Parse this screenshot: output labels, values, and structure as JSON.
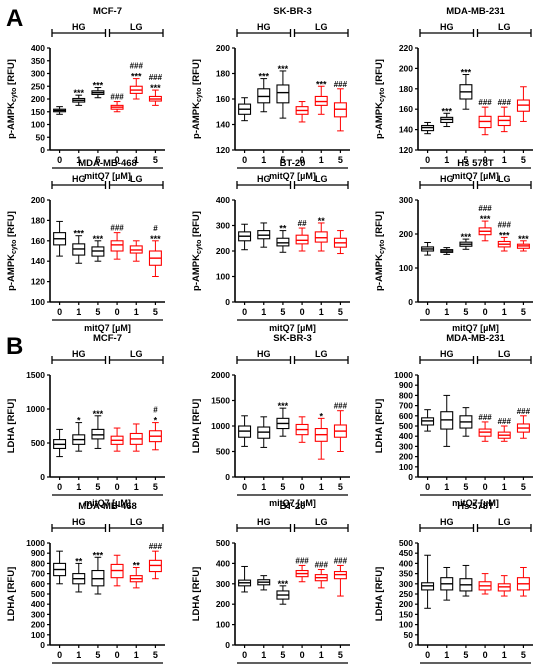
{
  "sections": [
    {
      "label": "A"
    },
    {
      "label": "B"
    }
  ],
  "colors": {
    "hg": "#000000",
    "lg": "#ff0000",
    "axis": "#000000"
  },
  "groups": [
    "HG",
    "LG"
  ],
  "categories": [
    "0",
    "1",
    "5",
    "0",
    "1",
    "5"
  ],
  "xlabel": "mitQ7 [µM]",
  "chart_data": [
    {
      "type": "box",
      "section": "A",
      "title": "MCF-7",
      "ylabel_main": "p-AMPK",
      "ylabel_sub": "cyto",
      "ylabel_unit": " [RFU]",
      "ylim": [
        0,
        400
      ],
      "yticks": [
        "0",
        "50",
        "100",
        "150",
        "200",
        "250",
        "300",
        "350",
        "400"
      ],
      "series": [
        {
          "name": "HG",
          "boxes": [
            [
              140,
              150,
              155,
              160,
              170
            ],
            [
              175,
              188,
              195,
              202,
              215
            ],
            [
              205,
              218,
              225,
              232,
              245
            ]
          ]
        },
        {
          "name": "LG",
          "boxes": [
            [
              150,
              160,
              168,
              175,
              190
            ],
            [
              200,
              222,
              235,
              250,
              280
            ],
            [
              175,
              192,
              200,
              210,
              235
            ]
          ]
        }
      ],
      "annotations": [
        [
          "",
          "***",
          "***"
        ],
        [
          "###",
          "###\n***",
          "###\n***"
        ]
      ]
    },
    {
      "type": "box",
      "section": "A",
      "title": "SK-BR-3",
      "ylabel_main": "p-AMPK",
      "ylabel_sub": "cyto",
      "ylabel_unit": " [RFU]",
      "ylim": [
        120,
        200
      ],
      "yticks": [
        "120",
        "140",
        "160",
        "180",
        "200"
      ],
      "series": [
        {
          "name": "HG",
          "boxes": [
            [
              143,
              148,
              152,
              156,
              161
            ],
            [
              150,
              157,
              162,
              168,
              176
            ],
            [
              145,
              157,
              165,
              171,
              182
            ]
          ]
        },
        {
          "name": "LG",
          "boxes": [
            [
              142,
              148,
              151,
              154,
              158
            ],
            [
              148,
              155,
              158,
              162,
              170
            ],
            [
              135,
              146,
              152,
              157,
              168
            ]
          ]
        }
      ],
      "annotations": [
        [
          "",
          "***",
          "***"
        ],
        [
          "",
          "***",
          "###"
        ]
      ]
    },
    {
      "type": "box",
      "section": "A",
      "title": "MDA-MB-231",
      "ylabel_main": "p-AMPK",
      "ylabel_sub": "cyto",
      "ylabel_unit": " [RFU]",
      "ylim": [
        120,
        220
      ],
      "yticks": [
        "120",
        "140",
        "160",
        "180",
        "200",
        "220"
      ],
      "series": [
        {
          "name": "HG",
          "boxes": [
            [
              136,
              139,
              142,
              144,
              147
            ],
            [
              143,
              147,
              150,
              152,
              156
            ],
            [
              160,
              170,
              177,
              184,
              194
            ]
          ]
        },
        {
          "name": "LG",
          "boxes": [
            [
              135,
              142,
              148,
              153,
              162
            ],
            [
              138,
              144,
              149,
              153,
              162
            ],
            [
              148,
              158,
              164,
              169,
              182
            ]
          ]
        }
      ],
      "annotations": [
        [
          "",
          "***",
          "***"
        ],
        [
          "###",
          "###",
          ""
        ]
      ]
    },
    {
      "type": "box",
      "section": "A",
      "title": "MDA-MB-468",
      "ylabel_main": "p-AMPK",
      "ylabel_sub": "cyto",
      "ylabel_unit": " [RFU]",
      "ylim": [
        100,
        200
      ],
      "yticks": [
        "100",
        "120",
        "140",
        "160",
        "180",
        "200"
      ],
      "series": [
        {
          "name": "HG",
          "boxes": [
            [
              145,
              156,
              162,
              168,
              179
            ],
            [
              138,
              146,
              152,
              157,
              165
            ],
            [
              140,
              145,
              150,
              154,
              160
            ]
          ]
        },
        {
          "name": "LG",
          "boxes": [
            [
              142,
              150,
              156,
              160,
              168
            ],
            [
              140,
              148,
              151,
              155,
              160
            ],
            [
              125,
              136,
              143,
              150,
              160
            ]
          ]
        }
      ],
      "annotations": [
        [
          "",
          "***",
          "***"
        ],
        [
          "###",
          "",
          "#\n***"
        ]
      ]
    },
    {
      "type": "box",
      "section": "A",
      "title": "BT-20",
      "ylabel_main": "p-AMPK",
      "ylabel_sub": "cyto",
      "ylabel_unit": " [RFU]",
      "ylim": [
        0,
        400
      ],
      "yticks": [
        "0",
        "100",
        "200",
        "300",
        "400"
      ],
      "series": [
        {
          "name": "HG",
          "boxes": [
            [
              205,
              240,
              258,
              275,
              305
            ],
            [
              215,
              248,
              262,
              280,
              310
            ],
            [
              195,
              220,
              232,
              250,
              280
            ]
          ]
        },
        {
          "name": "LG",
          "boxes": [
            [
              200,
              228,
              242,
              262,
              290
            ],
            [
              200,
              235,
              252,
              275,
              310
            ],
            [
              190,
              215,
              232,
              250,
              280
            ]
          ]
        }
      ],
      "annotations": [
        [
          "",
          "",
          "**"
        ],
        [
          "##",
          "**",
          ""
        ]
      ]
    },
    {
      "type": "box",
      "section": "A",
      "title": "Hs 578T",
      "ylabel_main": "p-AMPK",
      "ylabel_sub": "cyto",
      "ylabel_unit": " [RFU]",
      "ylim": [
        0,
        300
      ],
      "yticks": [
        "0",
        "100",
        "200",
        "300"
      ],
      "series": [
        {
          "name": "HG",
          "boxes": [
            [
              138,
              150,
              156,
              162,
              175
            ],
            [
              140,
              146,
              150,
              154,
              160
            ],
            [
              155,
              164,
              170,
              176,
              185
            ]
          ]
        },
        {
          "name": "LG",
          "boxes": [
            [
              180,
              198,
              208,
              218,
              238
            ],
            [
              150,
              162,
              170,
              178,
              190
            ],
            [
              150,
              158,
              165,
              170,
              180
            ]
          ]
        }
      ],
      "annotations": [
        [
          "",
          "",
          "***"
        ],
        [
          "###\n***",
          "###\n***",
          "***"
        ]
      ]
    },
    {
      "type": "box",
      "section": "B",
      "title": "MCF-7",
      "ylabel_main": "LDHA",
      "ylabel_sub": "",
      "ylabel_unit": " [RFU]",
      "ylim": [
        0,
        1500
      ],
      "yticks": [
        "0",
        "500",
        "1000",
        "1500"
      ],
      "series": [
        {
          "name": "HG",
          "boxes": [
            [
              300,
              420,
              480,
              550,
              700
            ],
            [
              380,
              480,
              550,
              620,
              800
            ],
            [
              420,
              560,
              620,
              700,
              900
            ]
          ]
        },
        {
          "name": "LG",
          "boxes": [
            [
              380,
              480,
              540,
              600,
              720
            ],
            [
              380,
              480,
              560,
              640,
              780
            ],
            [
              400,
              520,
              600,
              680,
              800
            ]
          ]
        }
      ],
      "annotations": [
        [
          "",
          "*",
          "***"
        ],
        [
          "",
          "",
          "#\n*"
        ]
      ]
    },
    {
      "type": "box",
      "section": "B",
      "title": "SK-BR-3",
      "ylabel_main": "LDHA",
      "ylabel_sub": "",
      "ylabel_unit": " [RFU]",
      "ylim": [
        0,
        2000
      ],
      "yticks": [
        "0",
        "500",
        "1000",
        "1500",
        "2000"
      ],
      "series": [
        {
          "name": "HG",
          "boxes": [
            [
              600,
              780,
              900,
              1000,
              1200
            ],
            [
              580,
              760,
              880,
              980,
              1180
            ],
            [
              800,
              950,
              1050,
              1150,
              1350
            ]
          ]
        },
        {
          "name": "LG",
          "boxes": [
            [
              680,
              830,
              930,
              1030,
              1180
            ],
            [
              350,
              700,
              830,
              950,
              1150
            ],
            [
              500,
              780,
              900,
              1020,
              1300
            ]
          ]
        }
      ],
      "annotations": [
        [
          "",
          "",
          "***"
        ],
        [
          "",
          "*",
          "###"
        ]
      ]
    },
    {
      "type": "box",
      "section": "B",
      "title": "MDA-MB-231",
      "ylabel_main": "LDHA",
      "ylabel_sub": "",
      "ylabel_unit": " [RFU]",
      "ylim": [
        0,
        1000
      ],
      "yticks": [
        "0",
        "100",
        "200",
        "300",
        "400",
        "500",
        "600",
        "700",
        "800",
        "900",
        "1000"
      ],
      "series": [
        {
          "name": "HG",
          "boxes": [
            [
              450,
              510,
              550,
              580,
              660
            ],
            [
              300,
              470,
              560,
              640,
              800
            ],
            [
              400,
              480,
              540,
              600,
              680
            ]
          ]
        },
        {
          "name": "LG",
          "boxes": [
            [
              350,
              400,
              440,
              470,
              540
            ],
            [
              350,
              380,
              410,
              440,
              500
            ],
            [
              380,
              440,
              480,
              520,
              600
            ]
          ]
        }
      ],
      "annotations": [
        [
          "",
          "",
          ""
        ],
        [
          "###",
          "###",
          "###"
        ]
      ]
    },
    {
      "type": "box",
      "section": "B",
      "title": "MDA-MB-468",
      "ylabel_main": "LDHA",
      "ylabel_sub": "",
      "ylabel_unit": " [RFU]",
      "ylim": [
        0,
        1000
      ],
      "yticks": [
        "0",
        "100",
        "200",
        "300",
        "400",
        "500",
        "600",
        "700",
        "800",
        "900",
        "1000"
      ],
      "series": [
        {
          "name": "HG",
          "boxes": [
            [
              600,
              680,
              740,
              800,
              920
            ],
            [
              520,
              600,
              650,
              700,
              800
            ],
            [
              500,
              580,
              650,
              730,
              860
            ]
          ]
        },
        {
          "name": "LG",
          "boxes": [
            [
              580,
              660,
              730,
              790,
              880
            ],
            [
              560,
              620,
              650,
              680,
              760
            ],
            [
              650,
              720,
              780,
              830,
              920
            ]
          ]
        }
      ],
      "annotations": [
        [
          "",
          "**",
          "***"
        ],
        [
          "",
          "**",
          "###"
        ]
      ]
    },
    {
      "type": "box",
      "section": "B",
      "title": "BT-20",
      "ylabel_main": "LDHA",
      "ylabel_sub": "",
      "ylabel_unit": " [RFU]",
      "ylim": [
        0,
        500
      ],
      "yticks": [
        "0",
        "100",
        "200",
        "300",
        "400",
        "500"
      ],
      "series": [
        {
          "name": "HG",
          "boxes": [
            [
              260,
              290,
              305,
              318,
              385
            ],
            [
              270,
              295,
              308,
              320,
              340
            ],
            [
              200,
              225,
              245,
              265,
              290
            ]
          ]
        },
        {
          "name": "LG",
          "boxes": [
            [
              310,
              335,
              350,
              365,
              390
            ],
            [
              280,
              315,
              330,
              345,
              370
            ],
            [
              240,
              325,
              345,
              360,
              390
            ]
          ]
        }
      ],
      "annotations": [
        [
          "",
          "",
          "***"
        ],
        [
          "###",
          "###",
          "###"
        ]
      ]
    },
    {
      "type": "box",
      "section": "B",
      "title": "Hs 578T",
      "ylabel_main": "LDHA",
      "ylabel_sub": "",
      "ylabel_unit": " [RFU]",
      "ylim": [
        0,
        500
      ],
      "yticks": [
        "0",
        "50",
        "100",
        "150",
        "200",
        "250",
        "300",
        "350",
        "400",
        "450",
        "500"
      ],
      "series": [
        {
          "name": "HG",
          "boxes": [
            [
              180,
              270,
              290,
              305,
              440
            ],
            [
              220,
              270,
              300,
              330,
              380
            ],
            [
              240,
              265,
              295,
              325,
              390
            ]
          ]
        },
        {
          "name": "LG",
          "boxes": [
            [
              250,
              270,
              290,
              310,
              350
            ],
            [
              240,
              265,
              285,
              300,
              340
            ],
            [
              240,
              270,
              300,
              330,
              380
            ]
          ]
        }
      ],
      "annotations": [
        [
          "",
          "",
          ""
        ],
        [
          "",
          "",
          ""
        ]
      ]
    }
  ]
}
